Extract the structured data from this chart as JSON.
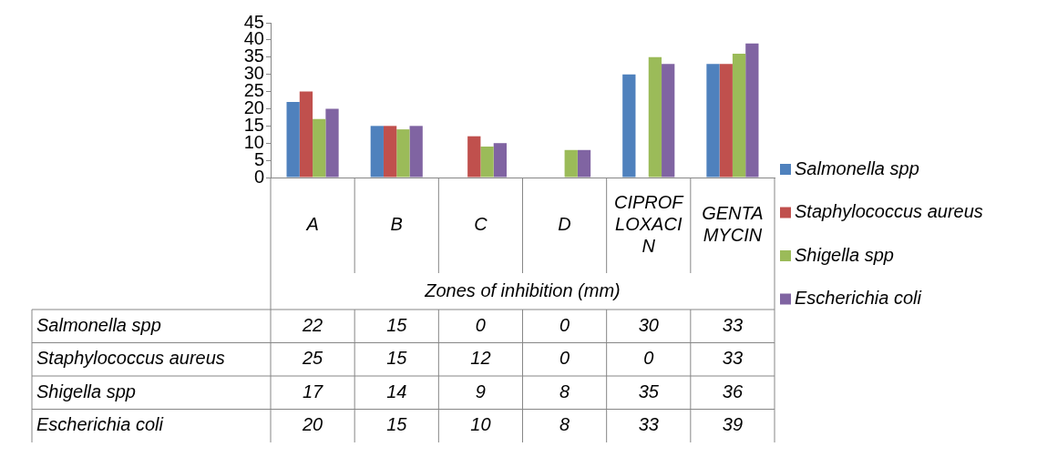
{
  "chart_data": {
    "type": "bar",
    "xlabel": "Zones of inhibition (mm)",
    "categories": [
      "A",
      "B",
      "C",
      "D",
      "CIPROFLOXACIN",
      "GENTAMYCIN"
    ],
    "series": [
      {
        "name": "Salmonella spp",
        "color": "#4f81bd",
        "values": [
          22,
          15,
          0,
          0,
          30,
          33
        ]
      },
      {
        "name": "Staphylococcus aureus",
        "color": "#c0504d",
        "values": [
          25,
          15,
          12,
          0,
          0,
          33
        ]
      },
      {
        "name": "Shigella spp",
        "color": "#9bbb59",
        "values": [
          17,
          14,
          9,
          8,
          35,
          36
        ]
      },
      {
        "name": "Escherichia coli",
        "color": "#8064a2",
        "values": [
          20,
          15,
          10,
          8,
          33,
          39
        ]
      }
    ],
    "ylim": [
      0,
      45
    ],
    "yticks": [
      0,
      5,
      10,
      15,
      20,
      25,
      30,
      35,
      40,
      45
    ],
    "legend": "right",
    "data_labels": true
  }
}
